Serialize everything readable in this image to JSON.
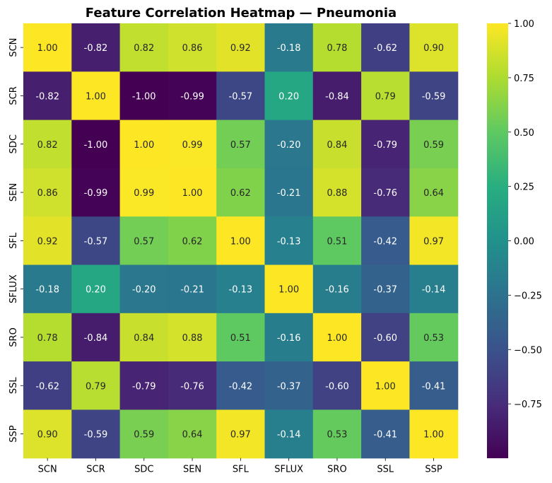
{
  "chart_data": {
    "type": "heatmap",
    "title": "Feature Correlation Heatmap — Pneumonia",
    "xlabel": "",
    "ylabel": "",
    "rows": [
      "SCN",
      "SCR",
      "SDC",
      "SEN",
      "SFL",
      "SFLUX",
      "SRO",
      "SSL",
      "SSP"
    ],
    "columns": [
      "SCN",
      "SCR",
      "SDC",
      "SEN",
      "SFL",
      "SFLUX",
      "SRO",
      "SSL",
      "SSP"
    ],
    "values": [
      [
        1.0,
        -0.82,
        0.82,
        0.86,
        0.92,
        -0.18,
        0.78,
        -0.62,
        0.9
      ],
      [
        -0.82,
        1.0,
        -1.0,
        -0.99,
        -0.57,
        0.2,
        -0.84,
        0.79,
        -0.59
      ],
      [
        0.82,
        -1.0,
        1.0,
        0.99,
        0.57,
        -0.2,
        0.84,
        -0.79,
        0.59
      ],
      [
        0.86,
        -0.99,
        0.99,
        1.0,
        0.62,
        -0.21,
        0.88,
        -0.76,
        0.64
      ],
      [
        0.92,
        -0.57,
        0.57,
        0.62,
        1.0,
        -0.13,
        0.51,
        -0.42,
        0.97
      ],
      [
        -0.18,
        0.2,
        -0.2,
        -0.21,
        -0.13,
        1.0,
        -0.16,
        -0.37,
        -0.14
      ],
      [
        0.78,
        -0.84,
        0.84,
        0.88,
        0.51,
        -0.16,
        1.0,
        -0.6,
        0.53
      ],
      [
        -0.62,
        0.79,
        -0.79,
        -0.76,
        -0.42,
        -0.37,
        -0.6,
        1.0,
        -0.41
      ],
      [
        0.9,
        -0.59,
        0.59,
        0.64,
        0.97,
        -0.14,
        0.53,
        -0.41,
        1.0
      ]
    ],
    "value_format": "2 decimals",
    "colormap": "viridis",
    "vmin": -1.0,
    "vmax": 1.0,
    "colorbar_ticks": [
      "1.00",
      "0.75",
      "0.50",
      "0.25",
      "0.00",
      "−0.25",
      "−0.50",
      "−0.75"
    ],
    "colorbar_tick_values": [
      1.0,
      0.75,
      0.5,
      0.25,
      0.0,
      -0.25,
      -0.5,
      -0.75
    ],
    "grid": false,
    "legend": "colorbar-right"
  }
}
